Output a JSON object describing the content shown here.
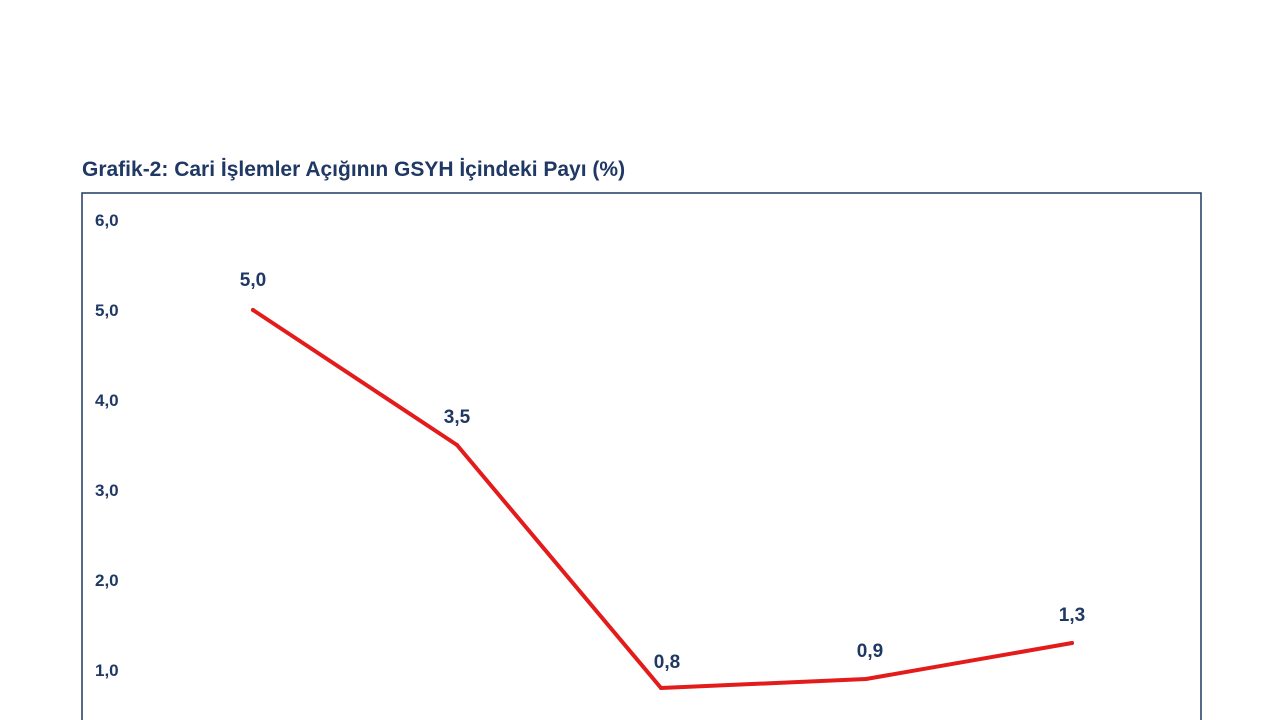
{
  "chart_data": {
    "type": "line",
    "title": "Grafik-2: Cari İşlemler Açığının GSYH İçindeki Payı (%)",
    "xlabel": "",
    "ylabel": "",
    "ylim": [
      0,
      6
    ],
    "yticks": [
      "1,0",
      "2,0",
      "3,0",
      "4,0",
      "5,0",
      "6,0"
    ],
    "ytick_values": [
      1,
      2,
      3,
      4,
      5,
      6
    ],
    "grid": false,
    "legend": "none",
    "series": [
      {
        "color": "#e31b1b",
        "values": [
          5.0,
          3.5,
          0.8,
          0.9,
          1.3
        ],
        "labels": [
          "5,0",
          "3,5",
          "0,8",
          "0,9",
          "1,3"
        ]
      }
    ]
  }
}
